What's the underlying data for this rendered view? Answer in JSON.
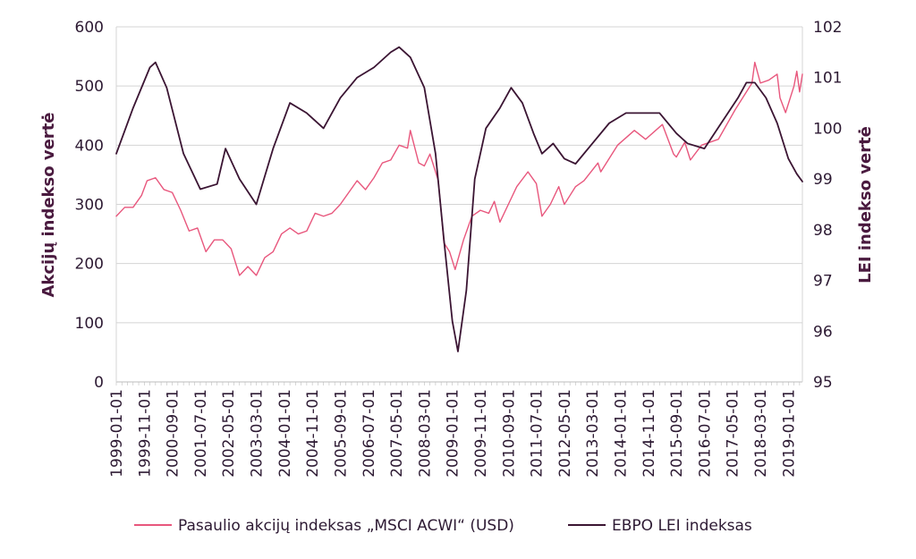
{
  "chart_data": {
    "type": "line",
    "title": "",
    "xlabel": "",
    "ylabel_left": "Akcijų indekso vertė",
    "ylabel_right": "LEI indekso vertė",
    "ylim_left": [
      0,
      600
    ],
    "ylim_right": [
      95,
      102
    ],
    "yticks_left": [
      "0",
      "100",
      "200",
      "300",
      "400",
      "500",
      "600"
    ],
    "yticks_right": [
      "95",
      "96",
      "97",
      "98",
      "99",
      "100",
      "101",
      "102"
    ],
    "x_range": [
      "1999-01-01",
      "2019-06-01"
    ],
    "x_tick_labels": [
      "1999-01-01",
      "1999-11-01",
      "2000-09-01",
      "2001-07-01",
      "2002-05-01",
      "2003-03-01",
      "2004-01-01",
      "2004-11-01",
      "2005-09-01",
      "2006-07-01",
      "2007-05-01",
      "2008-03-01",
      "2009-01-01",
      "2009-11-01",
      "2010-09-01",
      "2011-07-01",
      "2012-05-01",
      "2013-03-01",
      "2014-01-01",
      "2014-11-01",
      "2015-09-01",
      "2016-07-01",
      "2017-05-01",
      "2018-03-01",
      "2019-01-01"
    ],
    "grid": "horizontal",
    "legend_position": "bottom",
    "series": [
      {
        "name": "Pasaulio akcijų indeksas „MSCI ACWI“ (USD)",
        "axis": "left",
        "color": "#e8577d",
        "points": [
          [
            "1999-01-01",
            280
          ],
          [
            "1999-04-01",
            295
          ],
          [
            "1999-07-01",
            295
          ],
          [
            "1999-10-01",
            315
          ],
          [
            "1999-12-01",
            340
          ],
          [
            "2000-03-01",
            345
          ],
          [
            "2000-06-01",
            325
          ],
          [
            "2000-09-01",
            320
          ],
          [
            "2000-12-01",
            290
          ],
          [
            "2001-03-01",
            255
          ],
          [
            "2001-06-01",
            260
          ],
          [
            "2001-09-01",
            220
          ],
          [
            "2001-12-01",
            240
          ],
          [
            "2002-03-01",
            240
          ],
          [
            "2002-06-01",
            225
          ],
          [
            "2002-09-01",
            180
          ],
          [
            "2002-12-01",
            195
          ],
          [
            "2003-03-01",
            180
          ],
          [
            "2003-06-01",
            210
          ],
          [
            "2003-09-01",
            220
          ],
          [
            "2003-12-01",
            250
          ],
          [
            "2004-03-01",
            260
          ],
          [
            "2004-06-01",
            250
          ],
          [
            "2004-09-01",
            255
          ],
          [
            "2004-12-01",
            285
          ],
          [
            "2005-03-01",
            280
          ],
          [
            "2005-06-01",
            285
          ],
          [
            "2005-09-01",
            300
          ],
          [
            "2005-12-01",
            320
          ],
          [
            "2006-03-01",
            340
          ],
          [
            "2006-06-01",
            325
          ],
          [
            "2006-09-01",
            345
          ],
          [
            "2006-12-01",
            370
          ],
          [
            "2007-03-01",
            375
          ],
          [
            "2007-06-01",
            400
          ],
          [
            "2007-09-01",
            395
          ],
          [
            "2007-10-01",
            425
          ],
          [
            "2008-01-01",
            370
          ],
          [
            "2008-03-01",
            365
          ],
          [
            "2008-05-01",
            385
          ],
          [
            "2008-08-01",
            340
          ],
          [
            "2008-10-01",
            235
          ],
          [
            "2008-12-01",
            220
          ],
          [
            "2009-02-01",
            190
          ],
          [
            "2009-05-01",
            240
          ],
          [
            "2009-08-01",
            280
          ],
          [
            "2009-11-01",
            290
          ],
          [
            "2010-02-01",
            285
          ],
          [
            "2010-04-01",
            305
          ],
          [
            "2010-06-01",
            270
          ],
          [
            "2010-09-01",
            300
          ],
          [
            "2010-12-01",
            330
          ],
          [
            "2011-04-01",
            355
          ],
          [
            "2011-07-01",
            335
          ],
          [
            "2011-09-01",
            280
          ],
          [
            "2011-12-01",
            300
          ],
          [
            "2012-03-01",
            330
          ],
          [
            "2012-05-01",
            300
          ],
          [
            "2012-09-01",
            330
          ],
          [
            "2012-12-01",
            340
          ],
          [
            "2013-05-01",
            370
          ],
          [
            "2013-06-01",
            355
          ],
          [
            "2013-12-01",
            400
          ],
          [
            "2014-06-01",
            425
          ],
          [
            "2014-10-01",
            410
          ],
          [
            "2015-04-01",
            435
          ],
          [
            "2015-08-01",
            385
          ],
          [
            "2015-09-01",
            380
          ],
          [
            "2015-12-01",
            405
          ],
          [
            "2016-02-01",
            375
          ],
          [
            "2016-06-01",
            400
          ],
          [
            "2016-12-01",
            410
          ],
          [
            "2017-06-01",
            460
          ],
          [
            "2017-12-01",
            505
          ],
          [
            "2018-01-01",
            540
          ],
          [
            "2018-03-01",
            505
          ],
          [
            "2018-06-01",
            510
          ],
          [
            "2018-09-01",
            520
          ],
          [
            "2018-10-01",
            480
          ],
          [
            "2018-12-01",
            455
          ],
          [
            "2019-03-01",
            500
          ],
          [
            "2019-04-01",
            525
          ],
          [
            "2019-05-01",
            490
          ],
          [
            "2019-06-01",
            520
          ]
        ]
      },
      {
        "name": "EBPO LEI indeksas",
        "axis": "right",
        "color": "#3b1533",
        "points": [
          [
            "1999-01-01",
            99.5
          ],
          [
            "1999-07-01",
            100.4
          ],
          [
            "2000-01-01",
            101.2
          ],
          [
            "2000-03-01",
            101.3
          ],
          [
            "2000-07-01",
            100.8
          ],
          [
            "2001-01-01",
            99.5
          ],
          [
            "2001-07-01",
            98.8
          ],
          [
            "2002-01-01",
            98.9
          ],
          [
            "2002-04-01",
            99.6
          ],
          [
            "2002-09-01",
            99.0
          ],
          [
            "2003-03-01",
            98.5
          ],
          [
            "2003-09-01",
            99.6
          ],
          [
            "2004-03-01",
            100.5
          ],
          [
            "2004-09-01",
            100.3
          ],
          [
            "2005-03-01",
            100.0
          ],
          [
            "2005-09-01",
            100.6
          ],
          [
            "2006-03-01",
            101.0
          ],
          [
            "2006-09-01",
            101.2
          ],
          [
            "2007-03-01",
            101.5
          ],
          [
            "2007-06-01",
            101.6
          ],
          [
            "2007-10-01",
            101.4
          ],
          [
            "2008-03-01",
            100.8
          ],
          [
            "2008-07-01",
            99.5
          ],
          [
            "2008-10-01",
            97.8
          ],
          [
            "2009-01-01",
            96.2
          ],
          [
            "2009-03-01",
            95.6
          ],
          [
            "2009-06-01",
            96.8
          ],
          [
            "2009-09-01",
            99.0
          ],
          [
            "2010-01-01",
            100.0
          ],
          [
            "2010-06-01",
            100.4
          ],
          [
            "2010-10-01",
            100.8
          ],
          [
            "2011-02-01",
            100.5
          ],
          [
            "2011-06-01",
            99.9
          ],
          [
            "2011-09-01",
            99.5
          ],
          [
            "2012-01-01",
            99.7
          ],
          [
            "2012-05-01",
            99.4
          ],
          [
            "2012-09-01",
            99.3
          ],
          [
            "2013-03-01",
            99.7
          ],
          [
            "2013-09-01",
            100.1
          ],
          [
            "2014-03-01",
            100.3
          ],
          [
            "2014-09-01",
            100.3
          ],
          [
            "2015-03-01",
            100.3
          ],
          [
            "2015-09-01",
            99.9
          ],
          [
            "2016-01-01",
            99.7
          ],
          [
            "2016-07-01",
            99.6
          ],
          [
            "2017-01-01",
            100.1
          ],
          [
            "2017-07-01",
            100.6
          ],
          [
            "2017-10-01",
            100.9
          ],
          [
            "2018-01-01",
            100.9
          ],
          [
            "2018-05-01",
            100.6
          ],
          [
            "2018-09-01",
            100.1
          ],
          [
            "2019-01-01",
            99.4
          ],
          [
            "2019-04-01",
            99.1
          ],
          [
            "2019-06-01",
            98.95
          ]
        ]
      }
    ]
  }
}
